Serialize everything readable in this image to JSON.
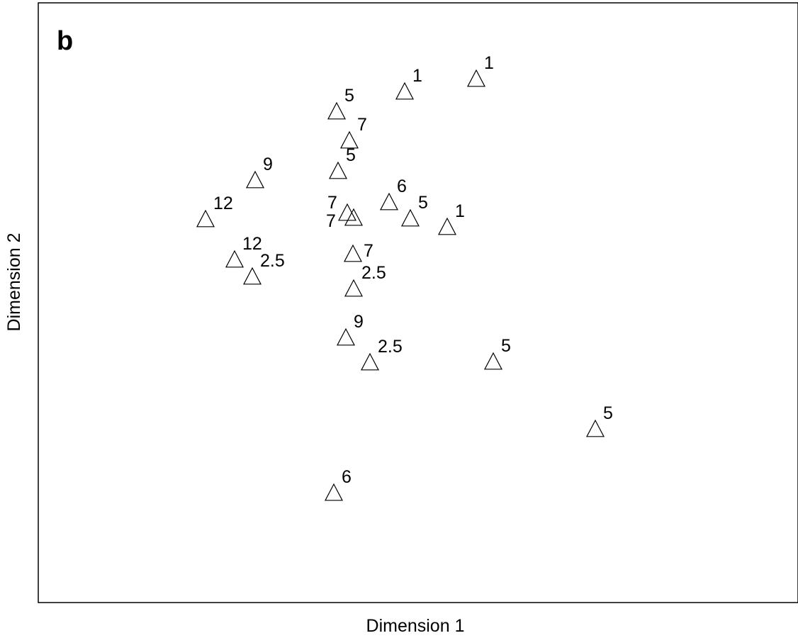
{
  "chart_data": {
    "type": "scatter",
    "panel_label": "b",
    "title": "",
    "xlabel": "Dimension 1",
    "ylabel": "Dimension 2",
    "xlim": [
      0,
      1072
    ],
    "ylim": [
      0,
      846
    ],
    "grid": false,
    "axis_ticks": false,
    "marker": "open-triangle",
    "colors": {
      "marker": "#000000",
      "text": "#000000",
      "frame": "#000000"
    },
    "points": [
      {
        "x": 517,
        "y": 721,
        "label": "1"
      },
      {
        "x": 618,
        "y": 739,
        "label": "1"
      },
      {
        "x": 421,
        "y": 693,
        "label": "5"
      },
      {
        "x": 439,
        "y": 652,
        "label": "7"
      },
      {
        "x": 423,
        "y": 609,
        "label": "5"
      },
      {
        "x": 306,
        "y": 596,
        "label": "9"
      },
      {
        "x": 495,
        "y": 565,
        "label": "6"
      },
      {
        "x": 236,
        "y": 541,
        "label": "12"
      },
      {
        "x": 436,
        "y": 550,
        "label": "7"
      },
      {
        "x": 445,
        "y": 543,
        "label": "7"
      },
      {
        "x": 525,
        "y": 542,
        "label": "5"
      },
      {
        "x": 577,
        "y": 530,
        "label": "1"
      },
      {
        "x": 444,
        "y": 492,
        "label": "7"
      },
      {
        "x": 277,
        "y": 484,
        "label": "12"
      },
      {
        "x": 302,
        "y": 460,
        "label": "2.5"
      },
      {
        "x": 445,
        "y": 443,
        "label": "2.5"
      },
      {
        "x": 434,
        "y": 374,
        "label": "9"
      },
      {
        "x": 468,
        "y": 339,
        "label": "2.5"
      },
      {
        "x": 642,
        "y": 340,
        "label": "5"
      },
      {
        "x": 786,
        "y": 245,
        "label": "5"
      },
      {
        "x": 417,
        "y": 155,
        "label": "6"
      }
    ]
  }
}
